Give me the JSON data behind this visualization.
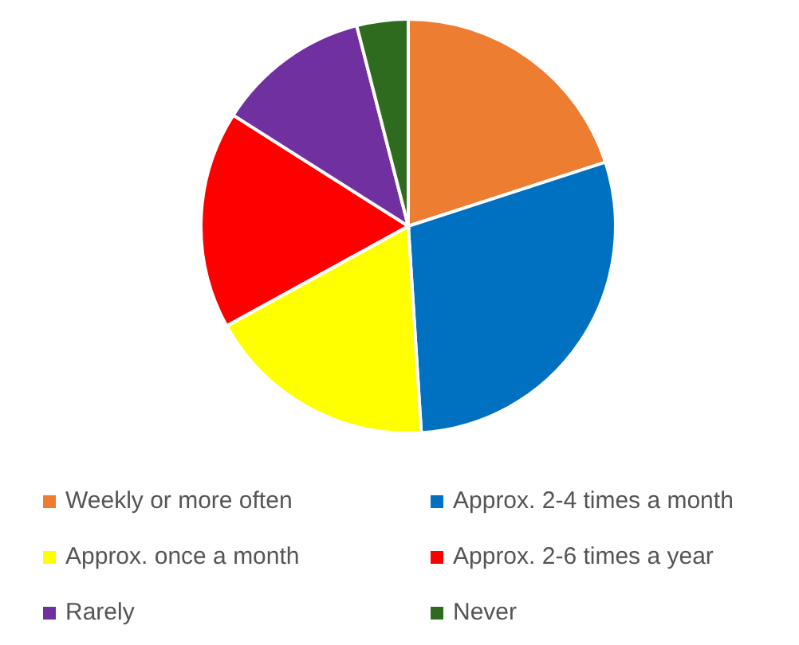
{
  "chart_data": {
    "type": "pie",
    "categories": [
      "Weekly or more often",
      "Approx. 2-4 times a month",
      "Approx. once a month",
      "Approx. 2-6 times a year",
      "Rarely",
      "Never"
    ],
    "values": [
      20,
      29,
      18,
      17,
      12,
      4
    ],
    "colors": [
      "#ed7d31",
      "#0070c0",
      "#ffff00",
      "#ff0000",
      "#7030a0",
      "#2e6b1f"
    ],
    "legend": "bottom"
  }
}
